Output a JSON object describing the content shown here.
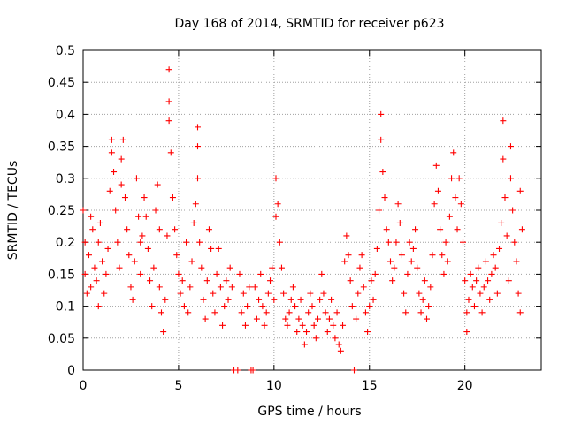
{
  "chart_data": {
    "type": "scatter",
    "title": "Day 168 of 2014, SRMTID for receiver p623",
    "xlabel": "GPS time / hours",
    "ylabel": "SRMTID / TECUs",
    "xlim": [
      0,
      24
    ],
    "ylim": [
      0,
      0.5
    ],
    "xticks": [
      0,
      5,
      10,
      15,
      20
    ],
    "xtick_labels": [
      "0",
      "5",
      "10",
      "15",
      "20"
    ],
    "yticks": [
      0,
      0.05,
      0.1,
      0.15,
      0.2,
      0.25,
      0.3,
      0.35,
      0.4,
      0.45,
      0.5
    ],
    "ytick_labels": [
      "0",
      "0.05",
      "0.1",
      "0.15",
      "0.2",
      "0.25",
      "0.3",
      "0.35",
      "0.4",
      "0.45",
      "0.5"
    ],
    "grid": true,
    "marker": "plus",
    "series": [
      {
        "name": "SRMTID",
        "color": "#ff0000",
        "points": [
          [
            0.0,
            0.25
          ],
          [
            0.1,
            0.2
          ],
          [
            0.1,
            0.15
          ],
          [
            0.2,
            0.12
          ],
          [
            0.3,
            0.18
          ],
          [
            0.4,
            0.24
          ],
          [
            0.4,
            0.13
          ],
          [
            0.5,
            0.22
          ],
          [
            0.6,
            0.16
          ],
          [
            0.7,
            0.14
          ],
          [
            0.8,
            0.2
          ],
          [
            0.8,
            0.1
          ],
          [
            0.9,
            0.23
          ],
          [
            1.0,
            0.17
          ],
          [
            1.1,
            0.12
          ],
          [
            1.2,
            0.15
          ],
          [
            1.3,
            0.19
          ],
          [
            1.4,
            0.28
          ],
          [
            1.5,
            0.34
          ],
          [
            1.5,
            0.36
          ],
          [
            1.6,
            0.31
          ],
          [
            1.7,
            0.25
          ],
          [
            1.8,
            0.2
          ],
          [
            1.9,
            0.16
          ],
          [
            2.0,
            0.33
          ],
          [
            2.0,
            0.29
          ],
          [
            2.1,
            0.36
          ],
          [
            2.2,
            0.27
          ],
          [
            2.3,
            0.22
          ],
          [
            2.4,
            0.18
          ],
          [
            2.5,
            0.13
          ],
          [
            2.6,
            0.11
          ],
          [
            2.7,
            0.17
          ],
          [
            2.8,
            0.3
          ],
          [
            2.9,
            0.24
          ],
          [
            3.0,
            0.2
          ],
          [
            3.0,
            0.15
          ],
          [
            3.1,
            0.21
          ],
          [
            3.2,
            0.27
          ],
          [
            3.3,
            0.24
          ],
          [
            3.4,
            0.19
          ],
          [
            3.5,
            0.14
          ],
          [
            3.6,
            0.1
          ],
          [
            3.7,
            0.16
          ],
          [
            3.8,
            0.25
          ],
          [
            3.9,
            0.29
          ],
          [
            4.0,
            0.22
          ],
          [
            4.0,
            0.13
          ],
          [
            4.1,
            0.09
          ],
          [
            4.2,
            0.06
          ],
          [
            4.3,
            0.11
          ],
          [
            4.4,
            0.21
          ],
          [
            4.5,
            0.47
          ],
          [
            4.5,
            0.42
          ],
          [
            4.5,
            0.39
          ],
          [
            4.6,
            0.34
          ],
          [
            4.7,
            0.27
          ],
          [
            4.8,
            0.22
          ],
          [
            4.9,
            0.18
          ],
          [
            5.0,
            0.15
          ],
          [
            5.1,
            0.12
          ],
          [
            5.2,
            0.14
          ],
          [
            5.3,
            0.1
          ],
          [
            5.4,
            0.2
          ],
          [
            5.5,
            0.09
          ],
          [
            5.6,
            0.13
          ],
          [
            5.7,
            0.17
          ],
          [
            5.8,
            0.23
          ],
          [
            5.9,
            0.26
          ],
          [
            6.0,
            0.35
          ],
          [
            6.0,
            0.38
          ],
          [
            6.0,
            0.3
          ],
          [
            6.1,
            0.2
          ],
          [
            6.2,
            0.16
          ],
          [
            6.3,
            0.11
          ],
          [
            6.4,
            0.08
          ],
          [
            6.5,
            0.14
          ],
          [
            6.6,
            0.22
          ],
          [
            6.7,
            0.19
          ],
          [
            6.8,
            0.12
          ],
          [
            6.9,
            0.09
          ],
          [
            7.0,
            0.15
          ],
          [
            7.1,
            0.19
          ],
          [
            7.2,
            0.13
          ],
          [
            7.3,
            0.07
          ],
          [
            7.4,
            0.1
          ],
          [
            7.5,
            0.14
          ],
          [
            7.6,
            0.11
          ],
          [
            7.7,
            0.16
          ],
          [
            7.8,
            0.13
          ],
          [
            7.9,
            0.0
          ],
          [
            8.1,
            0.0
          ],
          [
            8.2,
            0.15
          ],
          [
            8.3,
            0.09
          ],
          [
            8.4,
            0.12
          ],
          [
            8.5,
            0.07
          ],
          [
            8.6,
            0.1
          ],
          [
            8.7,
            0.13
          ],
          [
            8.8,
            0.0
          ],
          [
            8.9,
            0.0
          ],
          [
            9.0,
            0.13
          ],
          [
            9.1,
            0.08
          ],
          [
            9.2,
            0.11
          ],
          [
            9.3,
            0.15
          ],
          [
            9.4,
            0.1
          ],
          [
            9.5,
            0.07
          ],
          [
            9.6,
            0.09
          ],
          [
            9.7,
            0.12
          ],
          [
            9.8,
            0.14
          ],
          [
            9.9,
            0.16
          ],
          [
            10.0,
            0.11
          ],
          [
            10.1,
            0.24
          ],
          [
            10.1,
            0.3
          ],
          [
            10.2,
            0.26
          ],
          [
            10.3,
            0.2
          ],
          [
            10.4,
            0.16
          ],
          [
            10.5,
            0.12
          ],
          [
            10.6,
            0.08
          ],
          [
            10.7,
            0.07
          ],
          [
            10.8,
            0.09
          ],
          [
            10.9,
            0.11
          ],
          [
            11.0,
            0.13
          ],
          [
            11.1,
            0.1
          ],
          [
            11.2,
            0.06
          ],
          [
            11.3,
            0.08
          ],
          [
            11.4,
            0.11
          ],
          [
            11.5,
            0.07
          ],
          [
            11.6,
            0.04
          ],
          [
            11.7,
            0.06
          ],
          [
            11.8,
            0.09
          ],
          [
            11.9,
            0.12
          ],
          [
            12.0,
            0.1
          ],
          [
            12.1,
            0.07
          ],
          [
            12.2,
            0.05
          ],
          [
            12.3,
            0.08
          ],
          [
            12.4,
            0.11
          ],
          [
            12.5,
            0.15
          ],
          [
            12.6,
            0.12
          ],
          [
            12.7,
            0.09
          ],
          [
            12.8,
            0.06
          ],
          [
            12.9,
            0.08
          ],
          [
            13.0,
            0.11
          ],
          [
            13.1,
            0.07
          ],
          [
            13.2,
            0.05
          ],
          [
            13.3,
            0.09
          ],
          [
            13.4,
            0.04
          ],
          [
            13.5,
            0.03
          ],
          [
            13.6,
            0.07
          ],
          [
            13.7,
            0.17
          ],
          [
            13.8,
            0.21
          ],
          [
            13.9,
            0.18
          ],
          [
            14.0,
            0.14
          ],
          [
            14.1,
            0.1
          ],
          [
            14.2,
            0.0
          ],
          [
            14.3,
            0.08
          ],
          [
            14.4,
            0.12
          ],
          [
            14.5,
            0.16
          ],
          [
            14.6,
            0.18
          ],
          [
            14.7,
            0.13
          ],
          [
            14.8,
            0.09
          ],
          [
            14.9,
            0.06
          ],
          [
            15.0,
            0.1
          ],
          [
            15.1,
            0.14
          ],
          [
            15.2,
            0.11
          ],
          [
            15.3,
            0.15
          ],
          [
            15.4,
            0.19
          ],
          [
            15.5,
            0.25
          ],
          [
            15.6,
            0.4
          ],
          [
            15.6,
            0.36
          ],
          [
            15.7,
            0.31
          ],
          [
            15.8,
            0.27
          ],
          [
            15.9,
            0.22
          ],
          [
            16.0,
            0.2
          ],
          [
            16.1,
            0.17
          ],
          [
            16.2,
            0.14
          ],
          [
            16.3,
            0.16
          ],
          [
            16.4,
            0.2
          ],
          [
            16.5,
            0.26
          ],
          [
            16.6,
            0.23
          ],
          [
            16.7,
            0.18
          ],
          [
            16.8,
            0.12
          ],
          [
            16.9,
            0.09
          ],
          [
            17.0,
            0.15
          ],
          [
            17.1,
            0.2
          ],
          [
            17.2,
            0.17
          ],
          [
            17.3,
            0.19
          ],
          [
            17.4,
            0.22
          ],
          [
            17.5,
            0.16
          ],
          [
            17.6,
            0.12
          ],
          [
            17.7,
            0.09
          ],
          [
            17.8,
            0.11
          ],
          [
            17.9,
            0.14
          ],
          [
            18.0,
            0.08
          ],
          [
            18.1,
            0.1
          ],
          [
            18.2,
            0.13
          ],
          [
            18.3,
            0.18
          ],
          [
            18.4,
            0.26
          ],
          [
            18.5,
            0.32
          ],
          [
            18.6,
            0.28
          ],
          [
            18.7,
            0.22
          ],
          [
            18.8,
            0.18
          ],
          [
            18.9,
            0.15
          ],
          [
            19.0,
            0.2
          ],
          [
            19.1,
            0.17
          ],
          [
            19.2,
            0.24
          ],
          [
            19.3,
            0.3
          ],
          [
            19.4,
            0.34
          ],
          [
            19.5,
            0.27
          ],
          [
            19.6,
            0.22
          ],
          [
            19.7,
            0.3
          ],
          [
            19.8,
            0.26
          ],
          [
            19.9,
            0.2
          ],
          [
            20.0,
            0.14
          ],
          [
            20.1,
            0.09
          ],
          [
            20.1,
            0.06
          ],
          [
            20.2,
            0.11
          ],
          [
            20.3,
            0.15
          ],
          [
            20.4,
            0.13
          ],
          [
            20.5,
            0.1
          ],
          [
            20.6,
            0.14
          ],
          [
            20.7,
            0.16
          ],
          [
            20.8,
            0.12
          ],
          [
            20.9,
            0.09
          ],
          [
            21.0,
            0.13
          ],
          [
            21.1,
            0.17
          ],
          [
            21.2,
            0.14
          ],
          [
            21.3,
            0.11
          ],
          [
            21.4,
            0.15
          ],
          [
            21.5,
            0.18
          ],
          [
            21.6,
            0.16
          ],
          [
            21.7,
            0.12
          ],
          [
            21.8,
            0.19
          ],
          [
            21.9,
            0.23
          ],
          [
            22.0,
            0.39
          ],
          [
            22.0,
            0.33
          ],
          [
            22.1,
            0.27
          ],
          [
            22.2,
            0.21
          ],
          [
            22.3,
            0.14
          ],
          [
            22.4,
            0.3
          ],
          [
            22.4,
            0.35
          ],
          [
            22.5,
            0.25
          ],
          [
            22.6,
            0.2
          ],
          [
            22.7,
            0.17
          ],
          [
            22.8,
            0.12
          ],
          [
            22.9,
            0.09
          ],
          [
            22.9,
            0.28
          ],
          [
            23.0,
            0.22
          ]
        ]
      }
    ]
  }
}
